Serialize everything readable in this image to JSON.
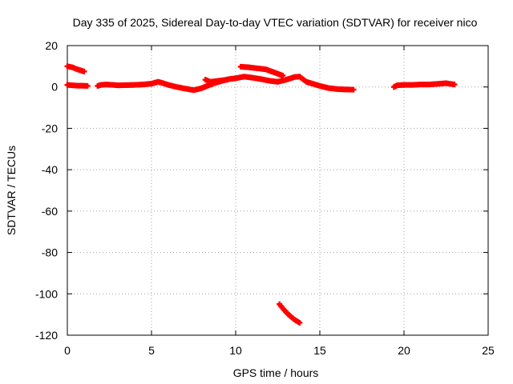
{
  "chart_data": {
    "type": "scatter",
    "title": "Day 335 of 2025, Sidereal Day-to-day VTEC variation (SDTVAR) for receiver nico",
    "xlabel": "GPS time / hours",
    "ylabel": "SDTVAR / TECUs",
    "xlim": [
      0,
      25
    ],
    "ylim": [
      -120,
      20
    ],
    "x_ticks": [
      0,
      5,
      10,
      15,
      20,
      25
    ],
    "y_ticks": [
      -120,
      -100,
      -80,
      -60,
      -40,
      -20,
      0,
      20
    ],
    "x_tick_labels": [
      "0",
      "5",
      "10",
      "15",
      "20",
      "25"
    ],
    "y_tick_labels": [
      "-120",
      "-100",
      "-80",
      "-60",
      "-40",
      "-20",
      "0",
      "20"
    ],
    "grid": true,
    "legend": "none",
    "marker_color": "#ff0000",
    "series": [
      {
        "color": "#ff0000",
        "segments": [
          [
            [
              0.0,
              10.0
            ],
            [
              0.3,
              9.5
            ],
            [
              0.6,
              8.5
            ],
            [
              1.0,
              7.5
            ]
          ],
          [
            [
              0.0,
              1.0
            ],
            [
              0.3,
              0.8
            ],
            [
              0.6,
              0.6
            ],
            [
              0.9,
              0.6
            ],
            [
              1.2,
              0.5
            ]
          ],
          [
            [
              1.8,
              0.5
            ],
            [
              2.0,
              1.0
            ],
            [
              2.3,
              1.2
            ],
            [
              2.7,
              1.0
            ],
            [
              3.0,
              0.8
            ],
            [
              3.5,
              0.9
            ],
            [
              4.0,
              1.0
            ],
            [
              4.5,
              1.2
            ],
            [
              5.0,
              1.6
            ],
            [
              5.4,
              2.5
            ],
            [
              5.7,
              1.8
            ],
            [
              6.0,
              1.0
            ],
            [
              6.5,
              0.0
            ],
            [
              7.0,
              -0.8
            ],
            [
              7.5,
              -1.5
            ],
            [
              7.8,
              -1.0
            ],
            [
              8.0,
              -0.5
            ],
            [
              8.4,
              0.8
            ],
            [
              8.8,
              2.0
            ],
            [
              9.2,
              3.0
            ],
            [
              9.6,
              3.8
            ],
            [
              10.0,
              4.2
            ],
            [
              10.5,
              5.0
            ],
            [
              11.0,
              4.5
            ],
            [
              11.5,
              3.8
            ],
            [
              12.0,
              3.0
            ],
            [
              12.5,
              2.5
            ],
            [
              13.0,
              3.5
            ],
            [
              13.5,
              4.8
            ],
            [
              13.8,
              5.0
            ],
            [
              14.2,
              2.5
            ],
            [
              14.6,
              1.5
            ],
            [
              15.0,
              0.5
            ],
            [
              15.5,
              -0.5
            ],
            [
              16.0,
              -1.0
            ],
            [
              16.5,
              -1.2
            ],
            [
              17.0,
              -1.3
            ]
          ],
          [
            [
              10.3,
              9.8
            ],
            [
              10.8,
              9.5
            ],
            [
              11.3,
              9.0
            ],
            [
              11.8,
              8.5
            ],
            [
              12.3,
              7.0
            ],
            [
              12.8,
              5.5
            ]
          ],
          [
            [
              8.2,
              3.5
            ],
            [
              8.5,
              2.5
            ],
            [
              9.0,
              3.0
            ],
            [
              9.5,
              3.5
            ]
          ],
          [
            [
              12.6,
              -105.0
            ],
            [
              12.9,
              -108.0
            ],
            [
              13.2,
              -110.5
            ],
            [
              13.5,
              -112.5
            ],
            [
              13.8,
              -114.0
            ]
          ],
          [
            [
              19.4,
              0.0
            ],
            [
              19.6,
              0.8
            ],
            [
              20.0,
              1.0
            ],
            [
              20.5,
              1.0
            ],
            [
              21.0,
              1.2
            ],
            [
              21.5,
              1.2
            ],
            [
              22.0,
              1.5
            ],
            [
              22.5,
              1.8
            ],
            [
              23.0,
              1.2
            ]
          ]
        ]
      }
    ]
  }
}
